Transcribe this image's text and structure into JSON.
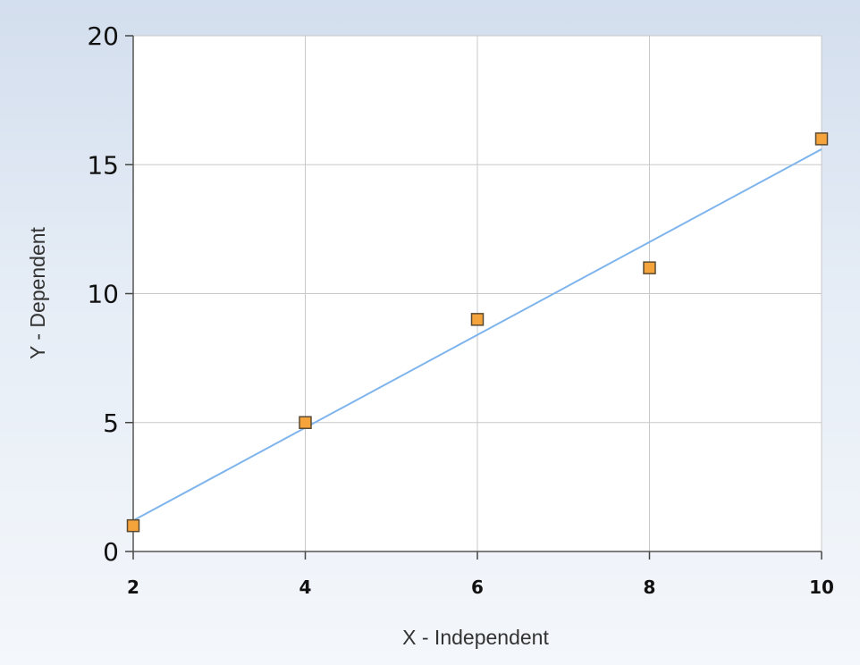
{
  "chart_data": {
    "type": "scatter",
    "title": "",
    "xlabel": "X - Independent",
    "ylabel": "Y - Dependent",
    "xlim": [
      2,
      10
    ],
    "ylim": [
      0,
      20
    ],
    "x_ticks": [
      "2",
      "4",
      "6",
      "8",
      "10"
    ],
    "y_ticks": [
      "0",
      "5",
      "10",
      "15",
      "20"
    ],
    "grid": true,
    "series": [
      {
        "points": [
          {
            "x": 2,
            "y": 1
          },
          {
            "x": 4,
            "y": 5
          },
          {
            "x": 6,
            "y": 9
          },
          {
            "x": 8,
            "y": 11
          },
          {
            "x": 10,
            "y": 16
          }
        ]
      }
    ],
    "trendline": {
      "type": "linear",
      "slope": 1.8,
      "intercept": -2.4
    },
    "colors": {
      "marker_fill": "#f5a33b",
      "marker_stroke": "#5a4a33",
      "trendline": "#7fb5ec",
      "grid": "#c8c8c8",
      "plot_background": "#ffffff"
    }
  }
}
